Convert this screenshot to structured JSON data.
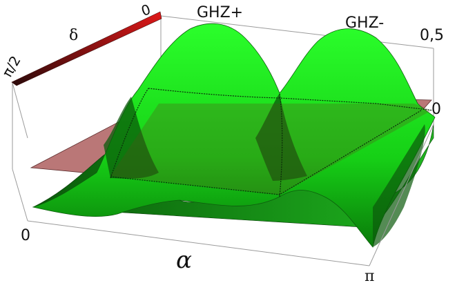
{
  "chart_data": {
    "type": "surface3d",
    "title": "",
    "axes": {
      "x": {
        "symbol": "α",
        "range": [
          "0",
          "π"
        ],
        "ticks": [
          "0",
          "π"
        ]
      },
      "y": {
        "symbol": "δ",
        "range": [
          "0",
          "π/2"
        ],
        "ticks": [
          "0",
          "π/2"
        ]
      },
      "z": {
        "ticks": [
          "0",
          "0,5"
        ]
      }
    },
    "annotations": [
      "GHZ+",
      "GHZ-"
    ],
    "surfaces": [
      {
        "name": "green surface",
        "description": "periodic in α with period π/2; peaks ≈0.5 near α=π/4 and α=3π/4; touches 0 at α=0, π/2, π for δ=π/2 side",
        "color": "#22ee22"
      },
      {
        "name": "plane",
        "level": 0,
        "color": "#b46b6b"
      }
    ],
    "colors": {
      "surface": "#22ee22",
      "surface_dark": "#0b6a0b",
      "plane": "#b46b6b",
      "arrow": "#d01010"
    }
  }
}
